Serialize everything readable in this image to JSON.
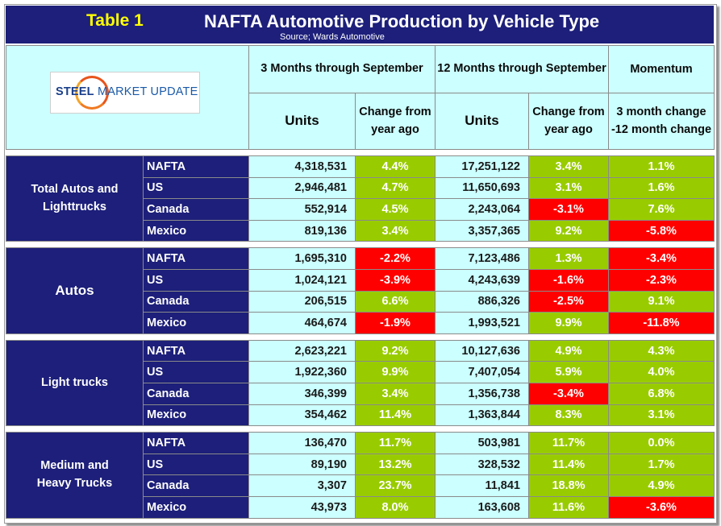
{
  "table_number": "Table 1",
  "title": "NAFTA Automotive Production by Vehicle Type",
  "source": "Source; Wards Automotive",
  "logo": {
    "steel": "STEEL",
    "rest": " MARKET UPDATE"
  },
  "headers": {
    "three_months": "3 Months through September",
    "twelve_months": "12 Months through September",
    "momentum": "Momentum",
    "units": "Units",
    "change": "Change from year ago",
    "momentum_sub": "3 month change -12 month change"
  },
  "colors": {
    "navy": "#1d1f7a",
    "light": "#ccffff",
    "green": "#99cc00",
    "red": "#ff0000",
    "title_yellow": "#ffff00"
  },
  "groups": [
    {
      "name": "Total Autos and Lighttrucks",
      "rows": [
        {
          "region": "NAFTA",
          "u3": "4,318,531",
          "c3": "4.4%",
          "u12": "17,251,122",
          "c12": "3.4%",
          "mom": "1.1%"
        },
        {
          "region": "US",
          "u3": "2,946,481",
          "c3": "4.7%",
          "u12": "11,650,693",
          "c12": "3.1%",
          "mom": "1.6%"
        },
        {
          "region": "Canada",
          "u3": "552,914",
          "c3": "4.5%",
          "u12": "2,243,064",
          "c12": "-3.1%",
          "mom": "7.6%"
        },
        {
          "region": "Mexico",
          "u3": "819,136",
          "c3": "3.4%",
          "u12": "3,357,365",
          "c12": "9.2%",
          "mom": "-5.8%"
        }
      ]
    },
    {
      "name": "Autos",
      "rows": [
        {
          "region": "NAFTA",
          "u3": "1,695,310",
          "c3": "-2.2%",
          "u12": "7,123,486",
          "c12": "1.3%",
          "mom": "-3.4%"
        },
        {
          "region": "US",
          "u3": "1,024,121",
          "c3": "-3.9%",
          "u12": "4,243,639",
          "c12": "-1.6%",
          "mom": "-2.3%"
        },
        {
          "region": "Canada",
          "u3": "206,515",
          "c3": "6.6%",
          "u12": "886,326",
          "c12": "-2.5%",
          "mom": "9.1%"
        },
        {
          "region": "Mexico",
          "u3": "464,674",
          "c3": "-1.9%",
          "u12": "1,993,521",
          "c12": "9.9%",
          "mom": "-11.8%"
        }
      ]
    },
    {
      "name": "Light trucks",
      "rows": [
        {
          "region": "NAFTA",
          "u3": "2,623,221",
          "c3": "9.2%",
          "u12": "10,127,636",
          "c12": "4.9%",
          "mom": "4.3%"
        },
        {
          "region": "US",
          "u3": "1,922,360",
          "c3": "9.9%",
          "u12": "7,407,054",
          "c12": "5.9%",
          "mom": "4.0%"
        },
        {
          "region": "Canada",
          "u3": "346,399",
          "c3": "3.4%",
          "u12": "1,356,738",
          "c12": "-3.4%",
          "mom": "6.8%"
        },
        {
          "region": "Mexico",
          "u3": "354,462",
          "c3": "11.4%",
          "u12": "1,363,844",
          "c12": "8.3%",
          "mom": "3.1%"
        }
      ]
    },
    {
      "name": "Medium and Heavy Trucks",
      "rows": [
        {
          "region": "NAFTA",
          "u3": "136,470",
          "c3": "11.7%",
          "u12": "503,981",
          "c12": "11.7%",
          "mom": "0.0%"
        },
        {
          "region": "US",
          "u3": "89,190",
          "c3": "13.2%",
          "u12": "328,532",
          "c12": "11.4%",
          "mom": "1.7%"
        },
        {
          "region": "Canada",
          "u3": "3,307",
          "c3": "23.7%",
          "u12": "11,841",
          "c12": "18.8%",
          "mom": "4.9%"
        },
        {
          "region": "Mexico",
          "u3": "43,973",
          "c3": "8.0%",
          "u12": "163,608",
          "c12": "11.6%",
          "mom": "-3.6%"
        }
      ]
    }
  ]
}
